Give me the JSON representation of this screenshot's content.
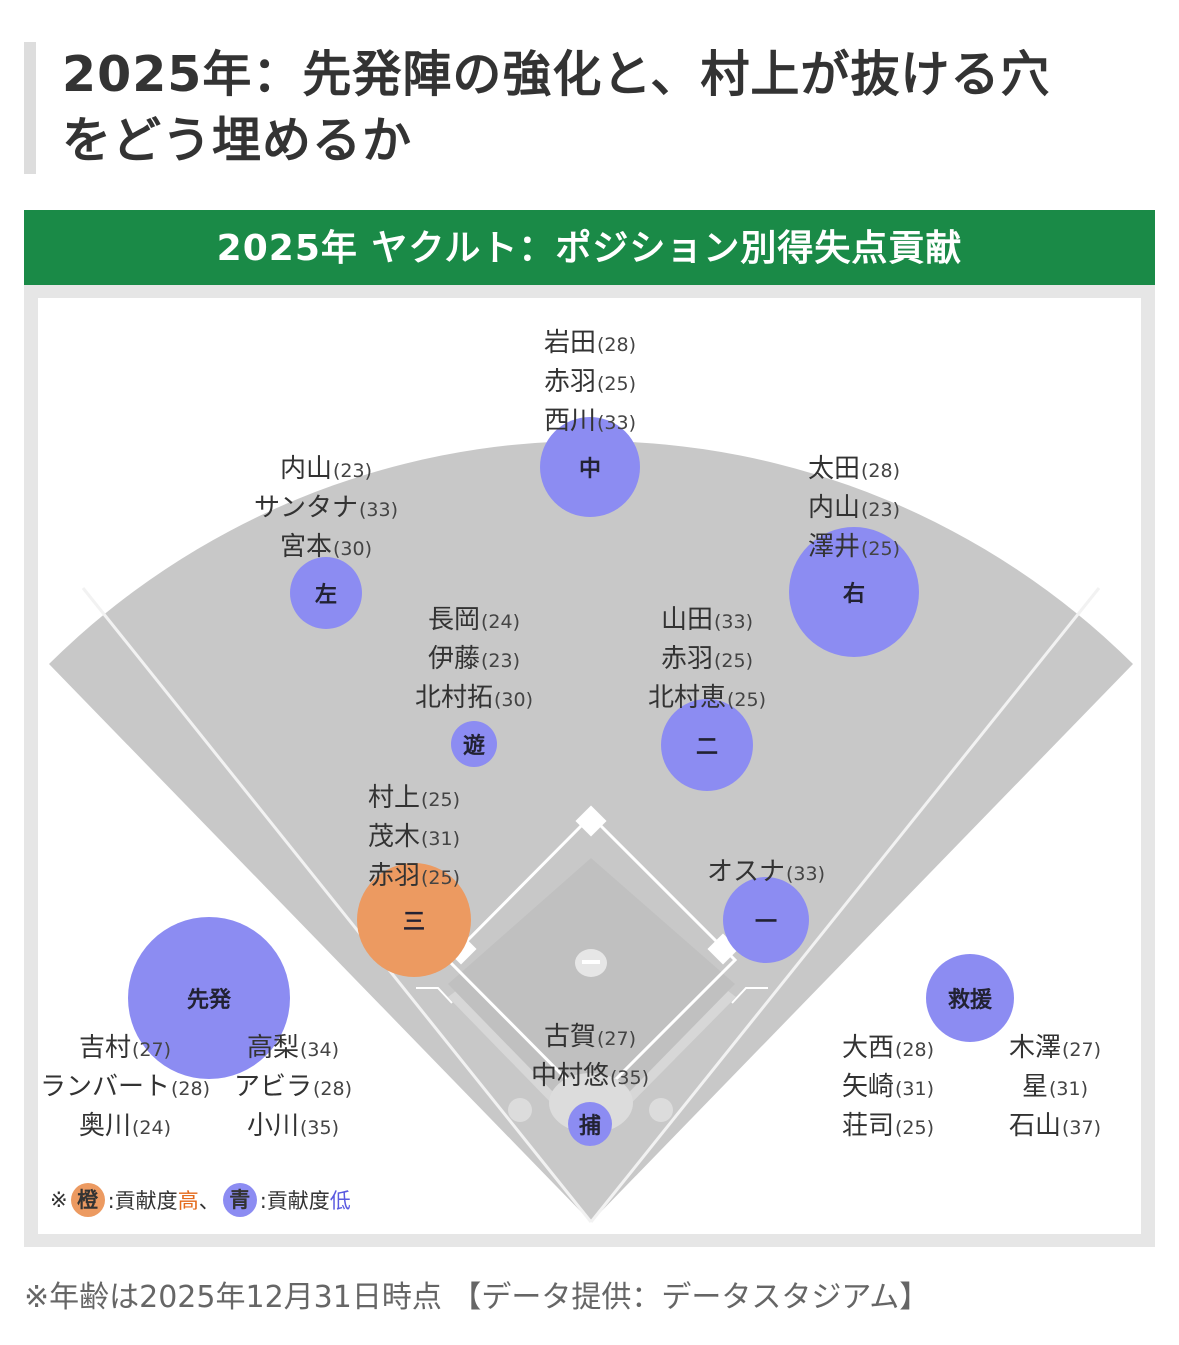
{
  "heading": {
    "line1": "2025年：先発陣の強化と、村上が抜ける穴",
    "line2": "をどう埋めるか"
  },
  "figure": {
    "banner": "2025年 ヤクルト：ポジション別得失点貢献",
    "colors": {
      "banner": "#1a8a47",
      "field": "#c8c8c8",
      "infield": "#dcdcdc",
      "high": "#ec9a61",
      "low": "#8c8cf2"
    },
    "positions": [
      {
        "key": "cf",
        "label": "中",
        "color": "low",
        "players": [
          {
            "name": "岩田",
            "age": "(28)"
          },
          {
            "name": "赤羽",
            "age": "(25)"
          },
          {
            "name": "西川",
            "age": "(33)"
          }
        ]
      },
      {
        "key": "lf",
        "label": "左",
        "color": "low",
        "players": [
          {
            "name": "内山",
            "age": "(23)"
          },
          {
            "name": "サンタナ",
            "age": "(33)"
          },
          {
            "name": "宮本",
            "age": "(30)"
          }
        ]
      },
      {
        "key": "rf",
        "label": "右",
        "color": "low",
        "players": [
          {
            "name": "太田",
            "age": "(28)"
          },
          {
            "name": "内山",
            "age": "(23)"
          },
          {
            "name": "澤井",
            "age": "(25)"
          }
        ]
      },
      {
        "key": "ss",
        "label": "遊",
        "color": "low",
        "players": [
          {
            "name": "長岡",
            "age": "(24)"
          },
          {
            "name": "伊藤",
            "age": "(23)"
          },
          {
            "name": "北村拓",
            "age": "(30)"
          }
        ]
      },
      {
        "key": "2b",
        "label": "二",
        "color": "low",
        "players": [
          {
            "name": "山田",
            "age": "(33)"
          },
          {
            "name": "赤羽",
            "age": "(25)"
          },
          {
            "name": "北村恵",
            "age": "(25)"
          }
        ]
      },
      {
        "key": "3b",
        "label": "三",
        "color": "high",
        "players": [
          {
            "name": "村上",
            "age": "(25)"
          },
          {
            "name": "茂木",
            "age": "(31)"
          },
          {
            "name": "赤羽",
            "age": "(25)"
          }
        ]
      },
      {
        "key": "1b",
        "label": "一",
        "color": "low",
        "players": [
          {
            "name": "オスナ",
            "age": "(33)"
          }
        ]
      },
      {
        "key": "c",
        "label": "捕",
        "color": "low",
        "players": [
          {
            "name": "古賀",
            "age": "(27)"
          },
          {
            "name": "中村悠",
            "age": "(35)"
          }
        ]
      },
      {
        "key": "sp",
        "label": "先発",
        "color": "low",
        "players_left": [
          {
            "name": "吉村",
            "age": "(27)"
          },
          {
            "name": "ランバート",
            "age": "(28)"
          },
          {
            "name": "奥川",
            "age": "(24)"
          }
        ],
        "players_right": [
          {
            "name": "高梨",
            "age": "(34)"
          },
          {
            "name": "アビラ",
            "age": "(28)"
          },
          {
            "name": "小川",
            "age": "(35)"
          }
        ]
      },
      {
        "key": "rp",
        "label": "救援",
        "color": "low",
        "players_left": [
          {
            "name": "大西",
            "age": "(28)"
          },
          {
            "name": "矢崎",
            "age": "(31)"
          },
          {
            "name": "荘司",
            "age": "(25)"
          }
        ],
        "players_right": [
          {
            "name": "木澤",
            "age": "(27)"
          },
          {
            "name": "星",
            "age": "(31)"
          },
          {
            "name": "石山",
            "age": "(37)"
          }
        ]
      }
    ],
    "legend": {
      "prefix": "※",
      "high_swatch": "橙",
      "high_sep": ":貢献度",
      "high_word": "高",
      "joiner": "、",
      "low_swatch": "青",
      "low_sep": ":貢献度",
      "low_word": "低"
    }
  },
  "footer": "※年齢は2025年12月31日時点 【データ提供：データスタジアム】"
}
